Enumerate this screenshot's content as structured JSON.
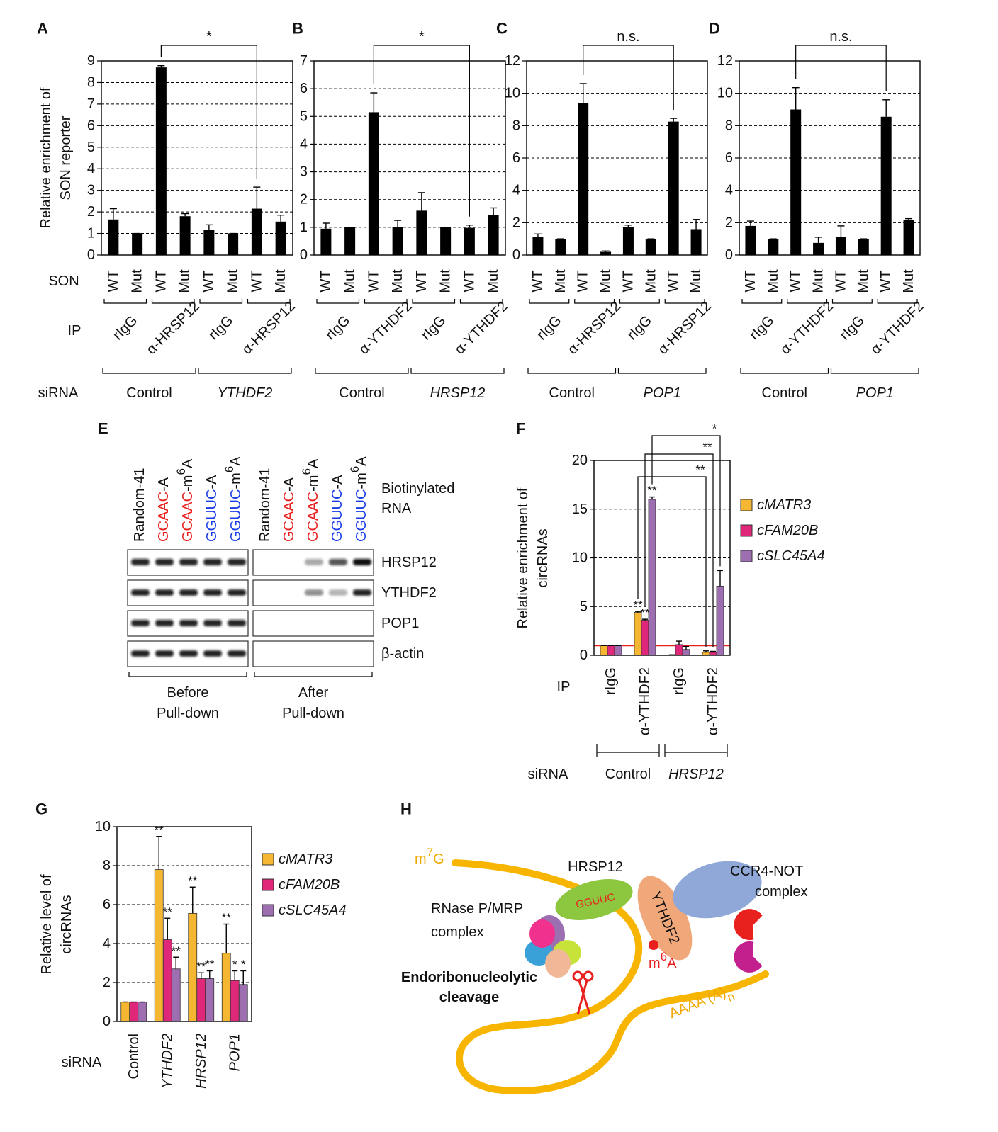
{
  "chart_data": [
    {
      "type": "bar",
      "panel": "A",
      "ylabel": [
        "Relative enrichment of",
        "SON reporter"
      ],
      "categories": [
        "WT",
        "Mut",
        "WT",
        "Mut",
        "WT",
        "Mut",
        "WT",
        "Mut"
      ],
      "values": [
        1.65,
        1,
        8.7,
        1.8,
        1.15,
        1,
        2.15,
        1.55
      ],
      "errors": [
        0.5,
        0,
        0.08,
        0.12,
        0.25,
        0,
        1.0,
        0.3
      ],
      "color": "#000000",
      "ylim": [
        0,
        9
      ],
      "yticks": [
        0,
        1,
        2,
        3,
        4,
        5,
        6,
        7,
        8,
        9
      ],
      "grid": true,
      "ip": [
        "rIgG",
        "α-HRSP12",
        "rIgG",
        "α-HRSP12"
      ],
      "groups": [
        {
          "label": "Control"
        },
        {
          "label": "YTHDF2",
          "italic": true
        }
      ],
      "comparisons": [
        {
          "from": 2,
          "to": 6,
          "label": "*"
        }
      ],
      "row_labels": {
        "categories": "SON",
        "ip": "IP",
        "groups": "siRNA"
      }
    },
    {
      "type": "bar",
      "panel": "B",
      "categories": [
        "WT",
        "Mut",
        "WT",
        "Mut",
        "WT",
        "Mut",
        "WT",
        "Mut"
      ],
      "values": [
        0.95,
        1,
        5.15,
        1,
        1.6,
        1,
        0.98,
        1.45
      ],
      "errors": [
        0.2,
        0,
        0.7,
        0.25,
        0.65,
        0,
        0.1,
        0.25
      ],
      "color": "#000000",
      "ylim": [
        0,
        7
      ],
      "yticks": [
        0,
        1,
        2,
        3,
        4,
        5,
        6,
        7
      ],
      "grid": true,
      "ip": [
        "rIgG",
        "α-YTHDF2",
        "rIgG",
        "α-YTHDF2"
      ],
      "groups": [
        {
          "label": "Control"
        },
        {
          "label": "HRSP12",
          "italic": true
        }
      ],
      "comparisons": [
        {
          "from": 2,
          "to": 6,
          "label": "*"
        }
      ]
    },
    {
      "type": "bar",
      "panel": "C",
      "categories": [
        "WT",
        "Mut",
        "WT",
        "Mut",
        "WT",
        "Mut",
        "WT",
        "Mut"
      ],
      "values": [
        1.1,
        1,
        9.4,
        0.2,
        1.75,
        1,
        8.25,
        1.6
      ],
      "errors": [
        0.2,
        0,
        1.2,
        0.05,
        0.1,
        0,
        0.2,
        0.6
      ],
      "color": "#000000",
      "ylim": [
        0,
        12
      ],
      "yticks": [
        0,
        2,
        4,
        6,
        8,
        10,
        12
      ],
      "grid": true,
      "ip": [
        "rIgG",
        "α-HRSP12",
        "rIgG",
        "α-HRSP12"
      ],
      "groups": [
        {
          "label": "Control"
        },
        {
          "label": "POP1",
          "italic": true
        }
      ],
      "comparisons": [
        {
          "from": 2,
          "to": 6,
          "label": "n.s."
        }
      ]
    },
    {
      "type": "bar",
      "panel": "D",
      "categories": [
        "WT",
        "Mut",
        "WT",
        "Mut",
        "WT",
        "Mut",
        "WT",
        "Mut"
      ],
      "values": [
        1.8,
        1,
        9.0,
        0.75,
        1.1,
        1,
        8.55,
        2.15
      ],
      "errors": [
        0.3,
        0,
        1.35,
        0.35,
        0.7,
        0,
        1.05,
        0.1
      ],
      "color": "#000000",
      "ylim": [
        0,
        12
      ],
      "yticks": [
        0,
        2,
        4,
        6,
        8,
        10,
        12
      ],
      "grid": true,
      "ip": [
        "rIgG",
        "α-YTHDF2",
        "rIgG",
        "α-YTHDF2"
      ],
      "groups": [
        {
          "label": "Control"
        },
        {
          "label": "POP1",
          "italic": true
        }
      ],
      "comparisons": [
        {
          "from": 2,
          "to": 6,
          "label": "n.s."
        }
      ]
    },
    {
      "type": "grouped_bar",
      "panel": "F",
      "ylabel": [
        "Relative enrichment of",
        "circRNAs"
      ],
      "categories": [
        "rIgG",
        "α-YTHDF2",
        "rIgG",
        "α-YTHDF2"
      ],
      "series": [
        {
          "name": "cMATR3",
          "color": "#f5b731",
          "values": [
            1,
            4.4,
            0.05,
            0.3
          ],
          "errors": [
            0,
            0.1,
            0,
            0.15
          ],
          "labels": [
            null,
            "**",
            null,
            null
          ]
        },
        {
          "name": "cFAM20B",
          "color": "#e0287a",
          "values": [
            1,
            3.6,
            1.1,
            0.3
          ],
          "errors": [
            0,
            0.1,
            0.35,
            0.1
          ],
          "labels": [
            null,
            "**",
            null,
            null
          ]
        },
        {
          "name": "cSLC45A4",
          "color": "#9e6fb0",
          "values": [
            1,
            16,
            0.6,
            7.1
          ],
          "errors": [
            0,
            0.25,
            0.3,
            1.6
          ],
          "labels": [
            null,
            "**",
            null,
            null
          ]
        }
      ],
      "ylim": [
        0,
        20
      ],
      "yticks": [
        0,
        5,
        10,
        15,
        20
      ],
      "grid": true,
      "reference_line": {
        "value": 1,
        "color": "#e8201e"
      },
      "groups": [
        {
          "label": "Control"
        },
        {
          "label": "HRSP12",
          "italic": true
        }
      ],
      "comparisons": [
        {
          "from": [
            0,
            1
          ],
          "to": [
            0,
            3
          ],
          "label": "**"
        },
        {
          "from": [
            1,
            1
          ],
          "to": [
            1,
            3
          ],
          "label": "**"
        },
        {
          "from": [
            2,
            1
          ],
          "to": [
            2,
            3
          ],
          "label": "*"
        }
      ],
      "row_labels": {
        "categories": "IP",
        "groups": "siRNA"
      }
    },
    {
      "type": "grouped_bar",
      "panel": "G",
      "ylabel": [
        "Relative level of",
        "circRNAs"
      ],
      "categories": [
        "Control",
        "YTHDF2",
        "HRSP12",
        "POP1"
      ],
      "category_italic": [
        false,
        true,
        true,
        true
      ],
      "series": [
        {
          "name": "cMATR3",
          "color": "#f5b731",
          "values": [
            1,
            7.8,
            5.55,
            3.5
          ],
          "errors": [
            0,
            1.7,
            1.35,
            1.5
          ],
          "labels": [
            null,
            "**",
            "**",
            "**"
          ]
        },
        {
          "name": "cFAM20B",
          "color": "#e0287a",
          "values": [
            1,
            4.2,
            2.2,
            2.1
          ],
          "errors": [
            0,
            1.1,
            0.3,
            0.5
          ],
          "labels": [
            null,
            "**",
            "**",
            "*"
          ]
        },
        {
          "name": "cSLC45A4",
          "color": "#9e6fb0",
          "values": [
            1,
            2.7,
            2.2,
            1.9
          ],
          "errors": [
            0,
            0.6,
            0.4,
            0.7
          ],
          "labels": [
            null,
            "**",
            "**",
            "*"
          ]
        }
      ],
      "ylim": [
        0,
        10
      ],
      "yticks": [
        0,
        2,
        4,
        6,
        8,
        10
      ],
      "grid": true,
      "row_labels": {
        "categories": "siRNA"
      }
    }
  ],
  "blot": {
    "panel": "E",
    "lanes": [
      [
        "Random-41"
      ],
      [
        "GCAAC",
        "-A"
      ],
      [
        "GCAAC",
        "-m",
        "6",
        "A"
      ],
      [
        "GGUUC",
        "-A"
      ],
      [
        "GGUUC",
        "-m",
        "6",
        "A"
      ],
      [
        "Random-41"
      ],
      [
        "GCAAC",
        "-A"
      ],
      [
        "GCAAC",
        "-m",
        "6",
        "A"
      ],
      [
        "GGUUC",
        "-A"
      ],
      [
        "GGUUC",
        "-m",
        "6",
        "A"
      ]
    ],
    "motif_colors": {
      "GCAAC": "#e8201e",
      "GGUUC": "#1a3ce8"
    },
    "label": [
      "Biotinylated",
      "RNA"
    ],
    "rows": [
      "HRSP12",
      "YTHDF2",
      "POP1",
      "β-actin"
    ],
    "groups": [
      [
        "Before",
        "Pull-down"
      ],
      [
        "After",
        "Pull-down"
      ]
    ]
  },
  "diagram": {
    "panel": "H",
    "cap": [
      "m",
      "7",
      "G"
    ],
    "hrsp12": "HRSP12",
    "motif": "GGUUC",
    "ythdf2": "YTHDF2",
    "ccr4": [
      "CCR4-NOT",
      "complex"
    ],
    "rnase": [
      "RNase P/MRP",
      "complex"
    ],
    "m6a": [
      "m",
      "6",
      "A"
    ],
    "cleavage": [
      "Endoribonucleolytic",
      "cleavage"
    ],
    "tail": [
      "AAAA (A)",
      "n"
    ]
  }
}
